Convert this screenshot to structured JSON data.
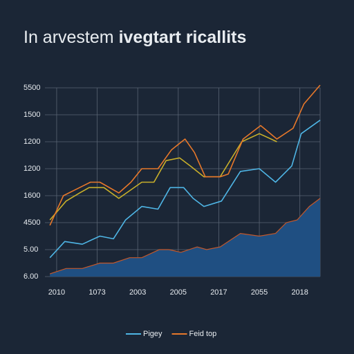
{
  "chart_data": {
    "type": "line",
    "title": [
      "In arvestem",
      "ivegtart ricallits"
    ],
    "xlim": [
      0,
      20.5
    ],
    "ylim": [
      0,
      7
    ],
    "xticks": [
      {
        "value": 1,
        "label": "2010"
      },
      {
        "value": 4,
        "label": "1073"
      },
      {
        "value": 7,
        "label": "2003"
      },
      {
        "value": 10,
        "label": "2005"
      },
      {
        "value": 13,
        "label": "2017"
      },
      {
        "value": 16,
        "label": "2055"
      },
      {
        "value": 19,
        "label": "2018"
      }
    ],
    "yticks": [
      {
        "value": 0,
        "label": "6.00"
      },
      {
        "value": 1,
        "label": "5.00"
      },
      {
        "value": 2,
        "label": "4500"
      },
      {
        "value": 3,
        "label": "1600"
      },
      {
        "value": 4,
        "label": "1200"
      },
      {
        "value": 5,
        "label": "1200"
      },
      {
        "value": 6,
        "label": "1500"
      },
      {
        "value": 7,
        "label": "5500"
      }
    ],
    "grid": true,
    "series": [
      {
        "kind": "area",
        "color": "#1f4f82",
        "x": [
          0.5,
          1.7,
          2.9,
          4.2,
          5.2,
          6.4,
          7.3,
          8.6,
          9.3,
          10.2,
          11.4,
          12.1,
          13.1,
          14.6,
          16.0,
          17.2,
          18.0,
          18.8,
          19.7,
          20.5
        ],
        "values": [
          0.1,
          0.3,
          0.3,
          0.5,
          0.5,
          0.7,
          0.7,
          1.0,
          1.0,
          0.9,
          1.1,
          1.0,
          1.1,
          1.6,
          1.5,
          1.6,
          2.0,
          2.1,
          2.6,
          2.9
        ]
      },
      {
        "name": "Pigey",
        "color": "#4fb6e6",
        "x": [
          0.5,
          1.6,
          2.9,
          4.2,
          5.2,
          6.1,
          7.3,
          8.5,
          9.4,
          10.4,
          11.1,
          11.9,
          13.2,
          14.6,
          16.0,
          17.2,
          18.4,
          19.1,
          20.5
        ],
        "values": [
          0.7,
          1.3,
          1.2,
          1.5,
          1.4,
          2.1,
          2.6,
          2.5,
          3.3,
          3.3,
          2.9,
          2.6,
          2.8,
          3.9,
          4.0,
          3.5,
          4.1,
          5.3,
          5.8
        ]
      },
      {
        "color": "#c9b02a",
        "x": [
          0.5,
          1.7,
          2.7,
          3.4,
          4.5,
          5.6,
          7.3,
          8.2,
          9.1,
          10.1,
          10.9,
          11.9,
          13.1,
          14.7,
          16.0,
          17.3
        ],
        "values": [
          2.1,
          2.8,
          3.1,
          3.3,
          3.3,
          2.9,
          3.5,
          3.5,
          4.3,
          4.4,
          4.1,
          3.7,
          3.7,
          5.0,
          5.3,
          5.0
        ]
      },
      {
        "name": "Feid top",
        "color": "#e8782a",
        "x": [
          0.5,
          1.5,
          2.3,
          3.5,
          4.2,
          5.6,
          6.5,
          7.3,
          8.5,
          9.5,
          10.5,
          11.2,
          12.0,
          13.1,
          13.7,
          14.8,
          16.1,
          17.3,
          18.5,
          19.3,
          20.5
        ],
        "values": [
          1.9,
          3.0,
          3.2,
          3.5,
          3.5,
          3.1,
          3.5,
          4.0,
          4.0,
          4.7,
          5.1,
          4.6,
          3.7,
          3.7,
          3.8,
          5.1,
          5.6,
          5.1,
          5.5,
          6.4,
          7.1
        ]
      }
    ]
  }
}
